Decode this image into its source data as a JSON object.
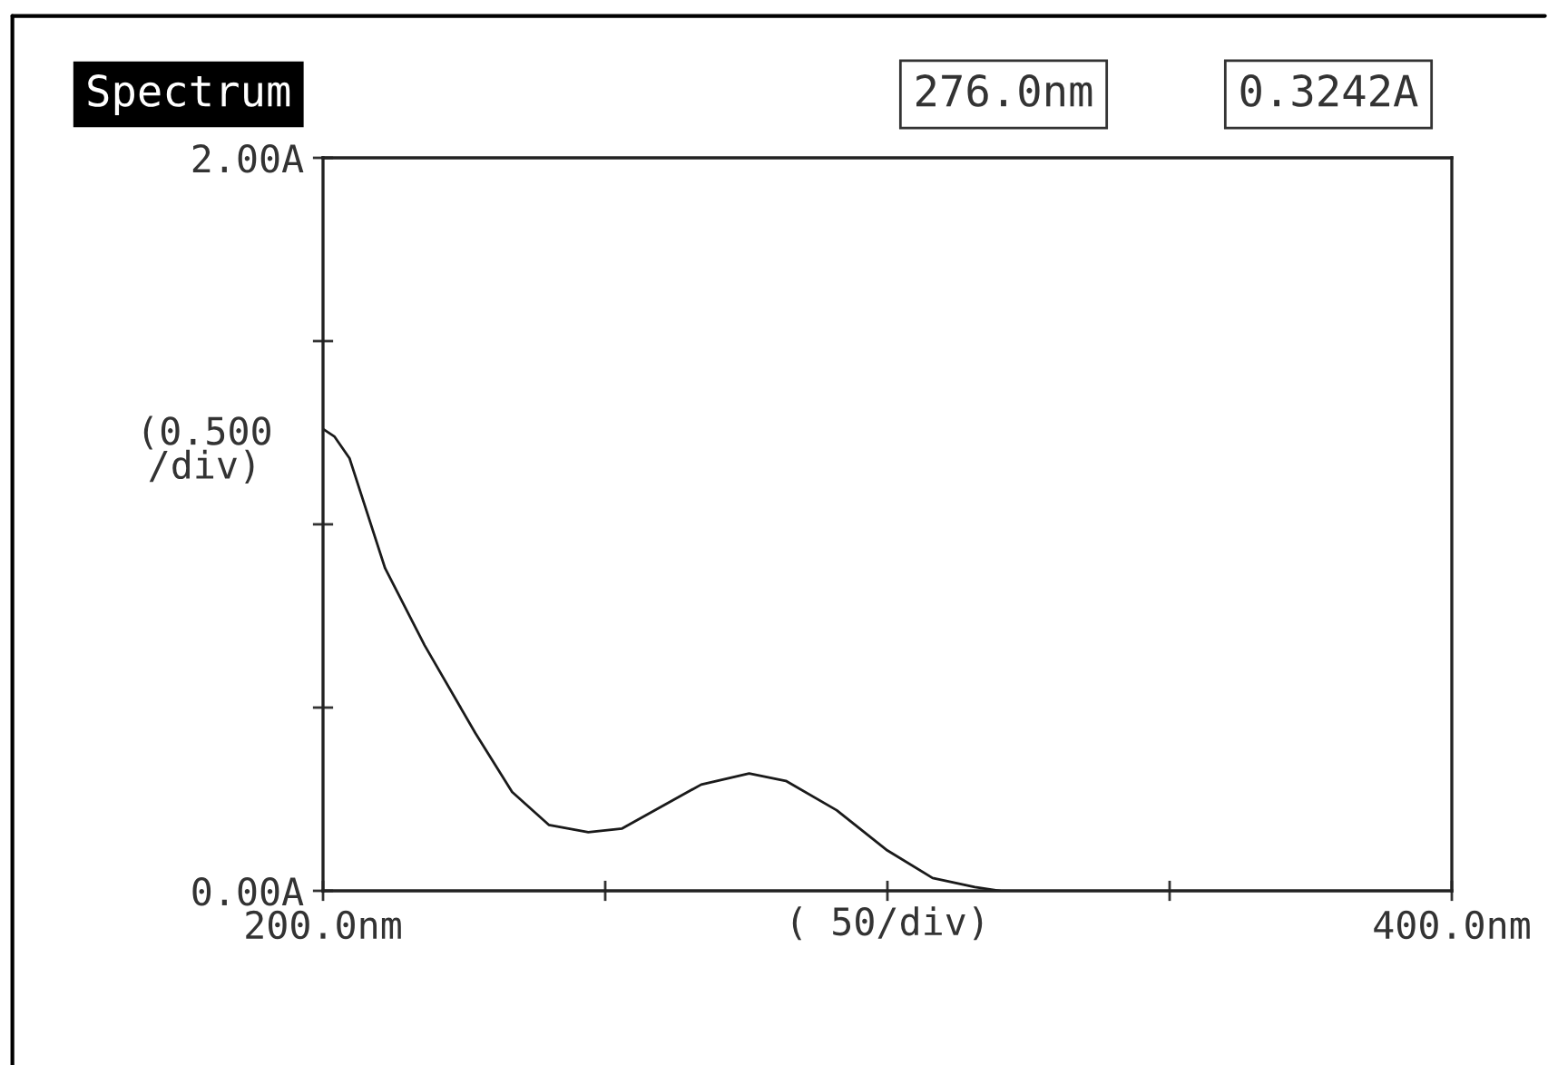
{
  "chart_data": {
    "type": "line",
    "title": "Spectrum",
    "annotations": [
      "276.0nm",
      "0.3242A"
    ],
    "xlabel": "( 50/div)",
    "ylabel": "(0.500\n/div)",
    "x": [
      200,
      202,
      204.7,
      211,
      218,
      227,
      233.5,
      240,
      247,
      253,
      260,
      267,
      275.5,
      282,
      291,
      300,
      308,
      315.5,
      320
    ],
    "series": [
      {
        "color": "#1a1a1a",
        "values": [
          1.26,
          1.24,
          1.18,
          0.88,
          0.67,
          0.43,
          0.27,
          0.18,
          0.16,
          0.17,
          0.23,
          0.29,
          0.32,
          0.3,
          0.22,
          0.11,
          0.035,
          0.01,
          0.0
        ]
      }
    ],
    "xlim": [
      200,
      400
    ],
    "ylim": [
      0,
      2
    ],
    "xticks": [
      {
        "value": 200,
        "label": "200.0nm"
      },
      {
        "value": 250,
        "label": null
      },
      {
        "value": 300,
        "label": null
      },
      {
        "value": 350,
        "label": null
      },
      {
        "value": 400,
        "label": "400.0nm"
      }
    ],
    "yticks": [
      {
        "value": 0,
        "label": "0.00A"
      },
      {
        "value": 0.5,
        "label": null
      },
      {
        "value": 1.0,
        "label": null
      },
      {
        "value": 1.5,
        "label": null
      },
      {
        "value": 2.0,
        "label": "2.00A"
      }
    ],
    "grid": false,
    "legend": false,
    "marker": "none",
    "line_style": "solid"
  }
}
